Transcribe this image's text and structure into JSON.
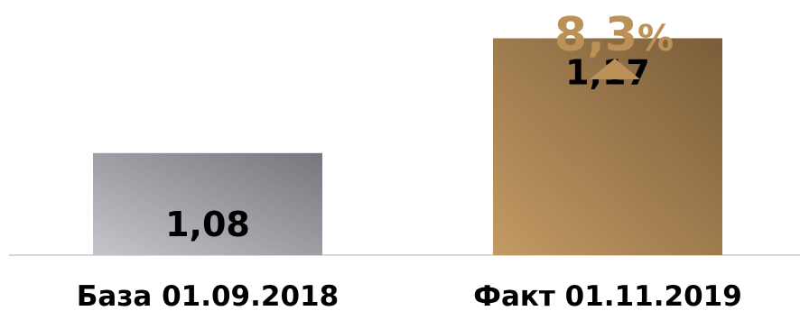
{
  "chart_data": {
    "type": "bar",
    "categories": [
      "База 01.09.2018",
      "Факт 01.11.2019"
    ],
    "values": [
      1.08,
      1.17
    ],
    "value_labels": [
      "1,08",
      "1,17"
    ],
    "annotation": {
      "number": "8,3",
      "unit": "%",
      "direction": "up"
    },
    "title": "",
    "xlabel": "",
    "ylabel": "",
    "ylim": [
      1.0,
      1.2
    ],
    "grid": false,
    "legend": "none"
  },
  "colors": {
    "bar_base_light": "#c6c5cb",
    "bar_base_dark": "#77767c",
    "bar_fact_light": "#c39a63",
    "bar_fact_dark": "#7a5d39",
    "accent": "#bb9157",
    "baseline": "#d9d9d9"
  },
  "icons": {
    "increase": "triangle-up-icon"
  }
}
